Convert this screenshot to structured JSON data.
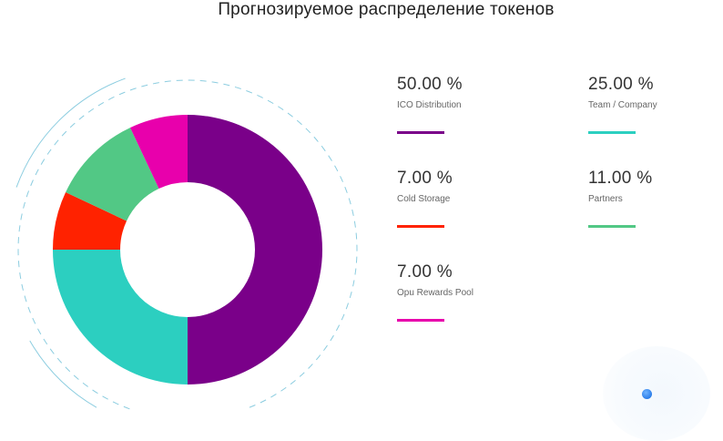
{
  "page": {
    "title": "Прогнозируемое распределение токенов"
  },
  "chart_data": {
    "type": "pie",
    "title": "Прогнозируемое распределение токенов",
    "donut": true,
    "start_angle_deg": 0,
    "direction": "clockwise",
    "slices": [
      {
        "label": "ICO Distribution",
        "value": 50.0,
        "value_text": "50.00 %",
        "color": "#7a0089"
      },
      {
        "label": "Team / Company",
        "value": 25.0,
        "value_text": "25.00 %",
        "color": "#2ccfc0"
      },
      {
        "label": "Cold Storage",
        "value": 7.0,
        "value_text": "7.00 %",
        "color": "#ff2200"
      },
      {
        "label": "Partners",
        "value": 11.0,
        "value_text": "11.00 %",
        "color": "#52c885"
      },
      {
        "label": "Opu Rewards Pool",
        "value": 7.0,
        "value_text": "7.00 %",
        "color": "#e800ac"
      }
    ],
    "legend_placement": "right",
    "decor_ring_color": "#8ccde0"
  }
}
